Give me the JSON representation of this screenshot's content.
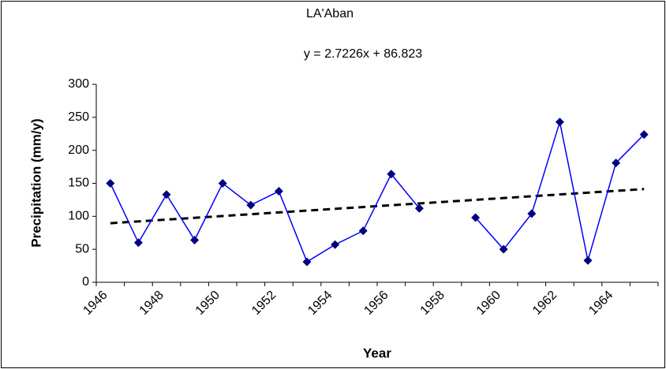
{
  "chart_data": {
    "type": "line",
    "title": "LA'Aban",
    "trendline": {
      "label": "y = 2.7226x + 86.823",
      "slope": 2.7226,
      "intercept": 86.823,
      "color": "#000000"
    },
    "x_label": "Year",
    "y_label": "Precipitation (mm/y)",
    "categories": [
      "1946",
      null,
      "1948",
      null,
      "1950",
      null,
      "1952",
      null,
      "1954",
      null,
      "1956",
      null,
      "1958",
      null,
      "1960",
      null,
      "1962",
      null,
      "1964",
      null
    ],
    "series": [
      {
        "name": "LA'Aban",
        "color": "#0000ff",
        "marker_color": "#000080",
        "values": [
          150,
          60,
          133,
          64,
          150,
          117,
          138,
          31,
          57,
          78,
          164,
          112,
          null,
          98,
          50,
          104,
          243,
          33,
          181,
          224
        ]
      }
    ],
    "ylim": [
      0,
      300
    ],
    "yticks": [
      0,
      50,
      100,
      150,
      200,
      250,
      300
    ],
    "grid": false,
    "legend": false
  }
}
